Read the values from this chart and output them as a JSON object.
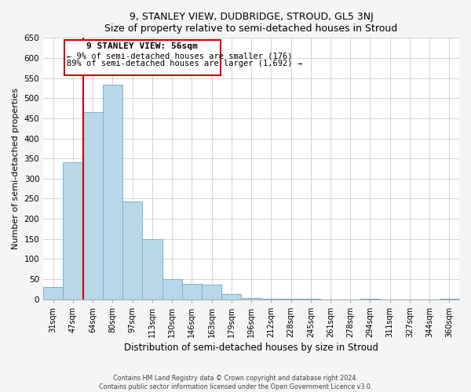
{
  "title1": "9, STANLEY VIEW, DUDBRIDGE, STROUD, GL5 3NJ",
  "title2": "Size of property relative to semi-detached houses in Stroud",
  "xlabel": "Distribution of semi-detached houses by size in Stroud",
  "ylabel": "Number of semi-detached properties",
  "categories": [
    "31sqm",
    "47sqm",
    "64sqm",
    "80sqm",
    "97sqm",
    "113sqm",
    "130sqm",
    "146sqm",
    "163sqm",
    "179sqm",
    "196sqm",
    "212sqm",
    "228sqm",
    "245sqm",
    "261sqm",
    "278sqm",
    "294sqm",
    "311sqm",
    "327sqm",
    "344sqm",
    "360sqm"
  ],
  "values": [
    30,
    340,
    465,
    533,
    243,
    150,
    50,
    38,
    36,
    12,
    3,
    2,
    1,
    1,
    0,
    0,
    1,
    0,
    0,
    0,
    1
  ],
  "bar_color": "#b8d8ea",
  "bar_edge_color": "#7ab4cc",
  "vline_x": 1.5,
  "subject_label": "9 STANLEY VIEW: 56sqm",
  "pct_smaller": "9% of semi-detached houses are smaller (176)",
  "pct_larger": "89% of semi-detached houses are larger (1,692)",
  "vline_color": "#cc0000",
  "annotation_box_edge": "#cc0000",
  "ylim": [
    0,
    650
  ],
  "yticks": [
    0,
    50,
    100,
    150,
    200,
    250,
    300,
    350,
    400,
    450,
    500,
    550,
    600,
    650
  ],
  "footer1": "Contains HM Land Registry data © Crown copyright and database right 2024.",
  "footer2": "Contains public sector information licensed under the Open Government Licence v3.0.",
  "bg_color": "#f5f5f5",
  "plot_bg_color": "#ffffff"
}
